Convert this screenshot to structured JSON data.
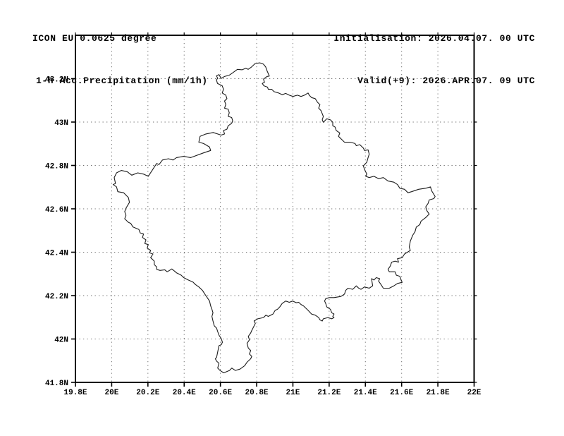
{
  "header": {
    "left": {
      "line1": "ICON EU 0.0625 degree",
      "line2": "1-h Acc.Precipitation (mm/1h)"
    },
    "right": {
      "line1": "Initialisation: 2026.04.07. 00 UTC",
      "line2": "Valid(+9): 2026.APR.07. 09 UTC"
    }
  },
  "colors": {
    "background": "#ffffff",
    "text": "#000000",
    "axis": "#000000",
    "grid": "#6e6e6e",
    "outline": "#1c1c1c"
  },
  "chart_data": {
    "type": "map",
    "region": "Kosovo border outline",
    "title": "ICON EU 0.0625 degree / 1-h Acc.Precipitation (mm/1h)",
    "grid": "dotted gridlines every 0.2 degree",
    "legend_position": "none",
    "lon_range": [
      19.8,
      22.0
    ],
    "lat_range": [
      41.8,
      43.4
    ],
    "lon_ticks": [
      {
        "value": 19.8,
        "label": "19.8E"
      },
      {
        "value": 20.0,
        "label": "20E"
      },
      {
        "value": 20.2,
        "label": "20.2E"
      },
      {
        "value": 20.4,
        "label": "20.4E"
      },
      {
        "value": 20.6,
        "label": "20.6E"
      },
      {
        "value": 20.8,
        "label": "20.8E"
      },
      {
        "value": 21.0,
        "label": "21E"
      },
      {
        "value": 21.2,
        "label": "21.2E"
      },
      {
        "value": 21.4,
        "label": "21.4E"
      },
      {
        "value": 21.6,
        "label": "21.6E"
      },
      {
        "value": 21.8,
        "label": "21.8E"
      },
      {
        "value": 22.0,
        "label": "22E"
      }
    ],
    "lat_ticks": [
      {
        "value": 43.2,
        "label": "43.2N"
      },
      {
        "value": 43.0,
        "label": "43N"
      },
      {
        "value": 42.8,
        "label": "42.8N"
      },
      {
        "value": 42.6,
        "label": "42.6N"
      },
      {
        "value": 42.4,
        "label": "42.4N"
      },
      {
        "value": 42.2,
        "label": "42.2N"
      },
      {
        "value": 42.0,
        "label": "42N"
      },
      {
        "value": 41.8,
        "label": "41.8N"
      }
    ],
    "border_points": [
      [
        20.585,
        43.202
      ],
      [
        20.578,
        43.213
      ],
      [
        20.592,
        43.219
      ],
      [
        20.604,
        43.201
      ],
      [
        20.623,
        43.21
      ],
      [
        20.649,
        43.216
      ],
      [
        20.668,
        43.227
      ],
      [
        20.694,
        43.243
      ],
      [
        20.72,
        43.241
      ],
      [
        20.74,
        43.248
      ],
      [
        20.753,
        43.243
      ],
      [
        20.772,
        43.254
      ],
      [
        20.792,
        43.27
      ],
      [
        20.818,
        43.273
      ],
      [
        20.837,
        43.267
      ],
      [
        20.85,
        43.254
      ],
      [
        20.857,
        43.237
      ],
      [
        20.87,
        43.212
      ],
      [
        20.857,
        43.21
      ],
      [
        20.838,
        43.198
      ],
      [
        20.843,
        43.183
      ],
      [
        20.831,
        43.178
      ],
      [
        20.84,
        43.167
      ],
      [
        20.86,
        43.161
      ],
      [
        20.864,
        43.151
      ],
      [
        20.883,
        43.151
      ],
      [
        20.896,
        43.14
      ],
      [
        20.921,
        43.134
      ],
      [
        20.941,
        43.126
      ],
      [
        20.96,
        43.132
      ],
      [
        20.98,
        43.124
      ],
      [
        21.0,
        43.118
      ],
      [
        21.025,
        43.124
      ],
      [
        21.045,
        43.118
      ],
      [
        21.064,
        43.124
      ],
      [
        21.084,
        43.134
      ],
      [
        21.09,
        43.124
      ],
      [
        21.103,
        43.113
      ],
      [
        21.123,
        43.108
      ],
      [
        21.136,
        43.091
      ],
      [
        21.149,
        43.08
      ],
      [
        21.142,
        43.064
      ],
      [
        21.155,
        43.053
      ],
      [
        21.168,
        43.026
      ],
      [
        21.162,
        43.01
      ],
      [
        21.168,
        42.999
      ],
      [
        21.187,
        43.015
      ],
      [
        21.207,
        43.01
      ],
      [
        21.22,
        42.999
      ],
      [
        21.22,
        42.983
      ],
      [
        21.233,
        42.977
      ],
      [
        21.239,
        42.961
      ],
      [
        21.259,
        42.95
      ],
      [
        21.252,
        42.934
      ],
      [
        21.285,
        42.907
      ],
      [
        21.317,
        42.907
      ],
      [
        21.343,
        42.901
      ],
      [
        21.35,
        42.891
      ],
      [
        21.369,
        42.896
      ],
      [
        21.389,
        42.88
      ],
      [
        21.395,
        42.869
      ],
      [
        21.415,
        42.872
      ],
      [
        21.421,
        42.852
      ],
      [
        21.415,
        42.836
      ],
      [
        21.408,
        42.815
      ],
      [
        21.389,
        42.798
      ],
      [
        21.395,
        42.782
      ],
      [
        21.408,
        42.76
      ],
      [
        21.402,
        42.75
      ],
      [
        21.421,
        42.744
      ],
      [
        21.447,
        42.75
      ],
      [
        21.473,
        42.739
      ],
      [
        21.499,
        42.744
      ],
      [
        21.525,
        42.728
      ],
      [
        21.557,
        42.723
      ],
      [
        21.577,
        42.712
      ],
      [
        21.59,
        42.695
      ],
      [
        21.616,
        42.69
      ],
      [
        21.635,
        42.674
      ],
      [
        21.655,
        42.679
      ],
      [
        21.694,
        42.69
      ],
      [
        21.733,
        42.695
      ],
      [
        21.759,
        42.701
      ],
      [
        21.765,
        42.684
      ],
      [
        21.785,
        42.657
      ],
      [
        21.778,
        42.647
      ],
      [
        21.752,
        42.641
      ],
      [
        21.746,
        42.625
      ],
      [
        21.733,
        42.609
      ],
      [
        21.739,
        42.592
      ],
      [
        21.752,
        42.576
      ],
      [
        21.733,
        42.56
      ],
      [
        21.707,
        42.543
      ],
      [
        21.7,
        42.527
      ],
      [
        21.681,
        42.516
      ],
      [
        21.674,
        42.495
      ],
      [
        21.661,
        42.478
      ],
      [
        21.648,
        42.451
      ],
      [
        21.642,
        42.424
      ],
      [
        21.648,
        42.408
      ],
      [
        21.616,
        42.392
      ],
      [
        21.603,
        42.375
      ],
      [
        21.577,
        42.37
      ],
      [
        21.583,
        42.354
      ],
      [
        21.564,
        42.359
      ],
      [
        21.545,
        42.354
      ],
      [
        21.538,
        42.337
      ],
      [
        21.525,
        42.321
      ],
      [
        21.532,
        42.31
      ],
      [
        21.564,
        42.31
      ],
      [
        21.571,
        42.294
      ],
      [
        21.59,
        42.289
      ],
      [
        21.597,
        42.272
      ],
      [
        21.603,
        42.261
      ],
      [
        21.577,
        42.256
      ],
      [
        21.557,
        42.245
      ],
      [
        21.532,
        42.234
      ],
      [
        21.499,
        42.234
      ],
      [
        21.486,
        42.251
      ],
      [
        21.473,
        42.267
      ],
      [
        21.479,
        42.278
      ],
      [
        21.46,
        42.283
      ],
      [
        21.447,
        42.272
      ],
      [
        21.434,
        42.278
      ],
      [
        21.44,
        42.245
      ],
      [
        21.421,
        42.234
      ],
      [
        21.395,
        42.24
      ],
      [
        21.376,
        42.229
      ],
      [
        21.363,
        42.234
      ],
      [
        21.35,
        42.245
      ],
      [
        21.33,
        42.229
      ],
      [
        21.304,
        42.234
      ],
      [
        21.291,
        42.224
      ],
      [
        21.285,
        42.207
      ],
      [
        21.265,
        42.196
      ],
      [
        21.227,
        42.191
      ],
      [
        21.201,
        42.191
      ],
      [
        21.181,
        42.186
      ],
      [
        21.175,
        42.175
      ],
      [
        21.181,
        42.164
      ],
      [
        21.187,
        42.148
      ],
      [
        21.207,
        42.137
      ],
      [
        21.214,
        42.121
      ],
      [
        21.227,
        42.115
      ],
      [
        21.22,
        42.104
      ],
      [
        21.227,
        42.099
      ],
      [
        21.214,
        42.093
      ],
      [
        21.194,
        42.099
      ],
      [
        21.168,
        42.093
      ],
      [
        21.162,
        42.083
      ],
      [
        21.149,
        42.088
      ],
      [
        21.142,
        42.099
      ],
      [
        21.123,
        42.11
      ],
      [
        21.103,
        42.115
      ],
      [
        21.084,
        42.132
      ],
      [
        21.058,
        42.153
      ],
      [
        21.045,
        42.159
      ],
      [
        21.032,
        42.169
      ],
      [
        21.019,
        42.167
      ],
      [
        20.999,
        42.175
      ],
      [
        20.98,
        42.169
      ],
      [
        20.96,
        42.175
      ],
      [
        20.941,
        42.164
      ],
      [
        20.928,
        42.148
      ],
      [
        20.915,
        42.137
      ],
      [
        20.902,
        42.132
      ],
      [
        20.89,
        42.115
      ],
      [
        20.864,
        42.104
      ],
      [
        20.851,
        42.11
      ],
      [
        20.838,
        42.099
      ],
      [
        20.806,
        42.093
      ],
      [
        20.786,
        42.083
      ],
      [
        20.793,
        42.072
      ],
      [
        20.773,
        42.039
      ],
      [
        20.767,
        42.028
      ],
      [
        20.754,
        42.012
      ],
      [
        20.76,
        41.996
      ],
      [
        20.747,
        41.98
      ],
      [
        20.754,
        41.958
      ],
      [
        20.767,
        41.947
      ],
      [
        20.76,
        41.931
      ],
      [
        20.773,
        41.92
      ],
      [
        20.767,
        41.909
      ],
      [
        20.747,
        41.893
      ],
      [
        20.734,
        41.877
      ],
      [
        20.708,
        41.861
      ],
      [
        20.682,
        41.855
      ],
      [
        20.663,
        41.866
      ],
      [
        20.65,
        41.855
      ],
      [
        20.618,
        41.844
      ],
      [
        20.598,
        41.855
      ],
      [
        20.585,
        41.866
      ],
      [
        20.592,
        41.888
      ],
      [
        20.579,
        41.898
      ],
      [
        20.572,
        41.909
      ],
      [
        20.579,
        41.915
      ],
      [
        20.592,
        41.969
      ],
      [
        20.605,
        41.974
      ],
      [
        20.611,
        41.985
      ],
      [
        20.605,
        42.001
      ],
      [
        20.592,
        42.018
      ],
      [
        20.585,
        42.034
      ],
      [
        20.579,
        42.05
      ],
      [
        20.566,
        42.061
      ],
      [
        20.559,
        42.083
      ],
      [
        20.553,
        42.104
      ],
      [
        20.559,
        42.121
      ],
      [
        20.553,
        42.137
      ],
      [
        20.546,
        42.153
      ],
      [
        20.54,
        42.175
      ],
      [
        20.527,
        42.191
      ],
      [
        20.514,
        42.207
      ],
      [
        20.501,
        42.224
      ],
      [
        20.481,
        42.24
      ],
      [
        20.462,
        42.251
      ],
      [
        20.449,
        42.262
      ],
      [
        20.423,
        42.272
      ],
      [
        20.397,
        42.283
      ],
      [
        20.384,
        42.294
      ],
      [
        20.358,
        42.305
      ],
      [
        20.345,
        42.314
      ],
      [
        20.332,
        42.323
      ],
      [
        20.319,
        42.316
      ],
      [
        20.306,
        42.31
      ],
      [
        20.293,
        42.319
      ],
      [
        20.267,
        42.316
      ],
      [
        20.248,
        42.321
      ],
      [
        20.248,
        42.332
      ],
      [
        20.235,
        42.343
      ],
      [
        20.235,
        42.359
      ],
      [
        20.215,
        42.375
      ],
      [
        20.228,
        42.392
      ],
      [
        20.209,
        42.397
      ],
      [
        20.215,
        42.408
      ],
      [
        20.196,
        42.419
      ],
      [
        20.202,
        42.435
      ],
      [
        20.183,
        42.44
      ],
      [
        20.189,
        42.457
      ],
      [
        20.17,
        42.468
      ],
      [
        20.176,
        42.484
      ],
      [
        20.157,
        42.489
      ],
      [
        20.15,
        42.505
      ],
      [
        20.118,
        42.516
      ],
      [
        20.105,
        42.533
      ],
      [
        20.092,
        42.538
      ],
      [
        20.072,
        42.554
      ],
      [
        20.079,
        42.57
      ],
      [
        20.072,
        42.587
      ],
      [
        20.079,
        42.603
      ],
      [
        20.098,
        42.63
      ],
      [
        20.092,
        42.652
      ],
      [
        20.066,
        42.674
      ],
      [
        20.034,
        42.679
      ],
      [
        20.027,
        42.701
      ],
      [
        20.008,
        42.712
      ],
      [
        20.021,
        42.717
      ],
      [
        20.014,
        42.744
      ],
      [
        20.027,
        42.766
      ],
      [
        20.053,
        42.777
      ],
      [
        20.086,
        42.771
      ],
      [
        20.111,
        42.755
      ],
      [
        20.144,
        42.766
      ],
      [
        20.176,
        42.76
      ],
      [
        20.202,
        42.75
      ],
      [
        20.248,
        42.809
      ],
      [
        20.261,
        42.804
      ],
      [
        20.28,
        42.825
      ],
      [
        20.313,
        42.831
      ],
      [
        20.339,
        42.825
      ],
      [
        20.358,
        42.836
      ],
      [
        20.397,
        42.842
      ],
      [
        20.436,
        42.836
      ],
      [
        20.507,
        42.858
      ],
      [
        20.546,
        42.869
      ],
      [
        20.54,
        42.885
      ],
      [
        20.507,
        42.901
      ],
      [
        20.481,
        42.907
      ],
      [
        20.488,
        42.934
      ],
      [
        20.52,
        42.945
      ],
      [
        20.56,
        42.952
      ],
      [
        20.604,
        42.94
      ],
      [
        20.623,
        42.945
      ],
      [
        20.617,
        42.961
      ],
      [
        20.636,
        42.967
      ],
      [
        20.643,
        42.983
      ],
      [
        20.662,
        42.994
      ],
      [
        20.668,
        43.005
      ],
      [
        20.662,
        43.021
      ],
      [
        20.643,
        43.026
      ],
      [
        20.649,
        43.043
      ],
      [
        20.643,
        43.059
      ],
      [
        20.623,
        43.064
      ],
      [
        20.63,
        43.081
      ],
      [
        20.623,
        43.097
      ],
      [
        20.636,
        43.108
      ],
      [
        20.63,
        43.124
      ],
      [
        20.61,
        43.134
      ],
      [
        20.617,
        43.151
      ],
      [
        20.61,
        43.167
      ],
      [
        20.584,
        43.178
      ],
      [
        20.578,
        43.194
      ]
    ]
  }
}
